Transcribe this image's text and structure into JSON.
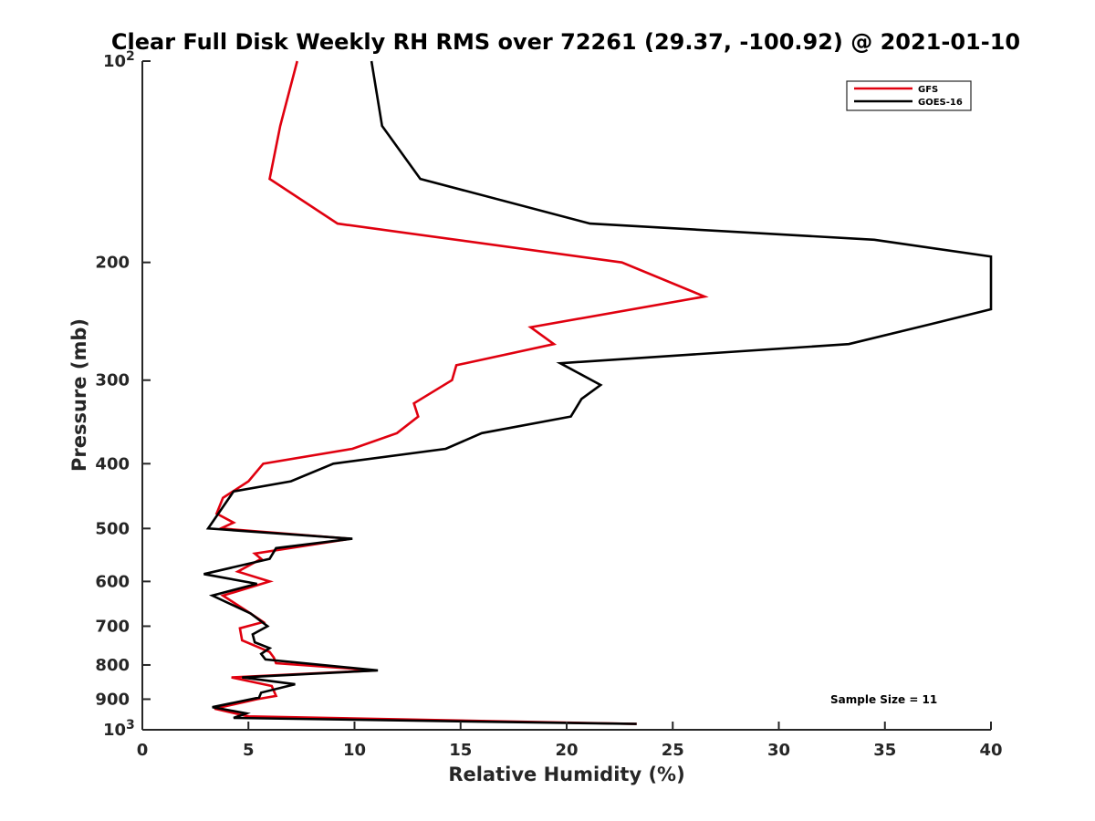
{
  "chart_data": {
    "type": "line",
    "title": "Clear Full Disk Weekly RH RMS over 72261 (29.37, -100.92) @ 2021-01-10",
    "xlabel": "Relative Humidity (%)",
    "ylabel": "Pressure (mb)",
    "xlim": [
      0,
      40
    ],
    "ylim": [
      1000,
      100
    ],
    "yscale": "log",
    "y_reversed": true,
    "xticks": [
      0,
      5,
      10,
      15,
      20,
      25,
      30,
      35,
      40
    ],
    "yticks": [
      {
        "value": 100,
        "label": "10",
        "sup": "2"
      },
      {
        "value": 200,
        "label": "200"
      },
      {
        "value": 300,
        "label": "300"
      },
      {
        "value": 400,
        "label": "400"
      },
      {
        "value": 500,
        "label": "500"
      },
      {
        "value": 600,
        "label": "600"
      },
      {
        "value": 700,
        "label": "700"
      },
      {
        "value": 800,
        "label": "800"
      },
      {
        "value": 900,
        "label": "900"
      },
      {
        "value": 1000,
        "label": "10",
        "sup": "3"
      }
    ],
    "annotation": "Sample Size = 11",
    "legend_position": "top-right",
    "series": [
      {
        "name": "GFS",
        "color": "#e0000f",
        "points": [
          [
            7.3,
            100
          ],
          [
            6.5,
            125
          ],
          [
            6.0,
            150
          ],
          [
            9.2,
            175
          ],
          [
            22.6,
            200
          ],
          [
            26.5,
            225
          ],
          [
            18.3,
            250
          ],
          [
            19.4,
            265
          ],
          [
            14.8,
            285
          ],
          [
            14.6,
            300
          ],
          [
            12.8,
            325
          ],
          [
            13.0,
            340
          ],
          [
            12.0,
            360
          ],
          [
            9.9,
            380
          ],
          [
            5.7,
            400
          ],
          [
            5.0,
            425
          ],
          [
            3.8,
            450
          ],
          [
            3.5,
            475
          ],
          [
            4.3,
            490
          ],
          [
            3.7,
            500
          ],
          [
            9.8,
            518
          ],
          [
            5.3,
            545
          ],
          [
            5.6,
            555
          ],
          [
            4.5,
            580
          ],
          [
            6.0,
            600
          ],
          [
            3.8,
            630
          ],
          [
            5.1,
            670
          ],
          [
            5.7,
            690
          ],
          [
            4.6,
            705
          ],
          [
            4.7,
            735
          ],
          [
            6.0,
            765
          ],
          [
            6.2,
            780
          ],
          [
            6.3,
            795
          ],
          [
            11.0,
            815
          ],
          [
            4.2,
            835
          ],
          [
            6.1,
            860
          ],
          [
            6.3,
            890
          ],
          [
            5.4,
            900
          ],
          [
            3.4,
            930
          ],
          [
            5.0,
            955
          ],
          [
            23.3,
            980
          ]
        ]
      },
      {
        "name": "GOES-16",
        "color": "#000000",
        "points": [
          [
            10.8,
            100
          ],
          [
            11.3,
            125
          ],
          [
            13.1,
            150
          ],
          [
            21.1,
            175
          ],
          [
            34.5,
            185
          ],
          [
            40.0,
            196
          ],
          [
            40.0,
            235
          ],
          [
            37.7,
            245
          ],
          [
            33.3,
            265
          ],
          [
            19.7,
            283
          ],
          [
            21.6,
            305
          ],
          [
            20.7,
            320
          ],
          [
            20.2,
            340
          ],
          [
            16.0,
            360
          ],
          [
            14.3,
            380
          ],
          [
            9.0,
            400
          ],
          [
            7.0,
            425
          ],
          [
            4.3,
            440
          ],
          [
            3.1,
            500
          ],
          [
            9.9,
            518
          ],
          [
            6.3,
            535
          ],
          [
            6.0,
            555
          ],
          [
            2.9,
            585
          ],
          [
            5.4,
            605
          ],
          [
            3.3,
            630
          ],
          [
            5.1,
            670
          ],
          [
            5.9,
            700
          ],
          [
            5.2,
            720
          ],
          [
            5.3,
            740
          ],
          [
            6.0,
            755
          ],
          [
            5.6,
            770
          ],
          [
            5.8,
            785
          ],
          [
            11.1,
            815
          ],
          [
            4.7,
            835
          ],
          [
            7.2,
            855
          ],
          [
            5.6,
            880
          ],
          [
            5.5,
            895
          ],
          [
            3.3,
            925
          ],
          [
            4.9,
            945
          ],
          [
            4.3,
            960
          ],
          [
            23.3,
            980
          ]
        ]
      }
    ]
  }
}
